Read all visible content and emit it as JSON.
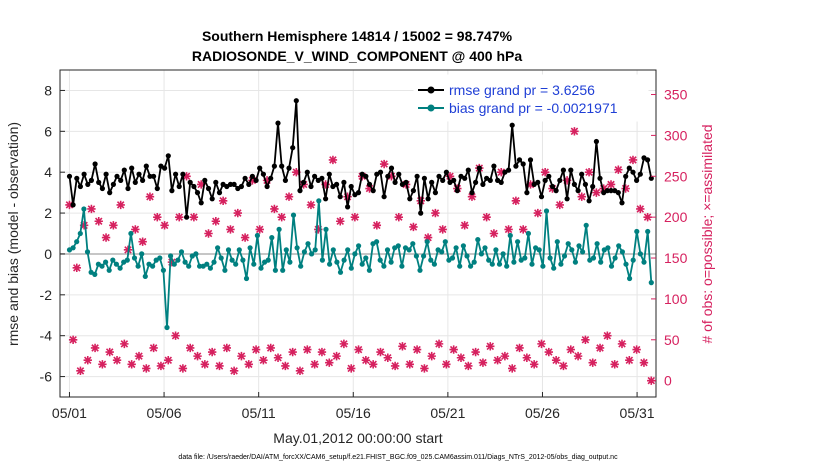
{
  "chart_data": {
    "type": "line",
    "title": "Southern Hemisphere 14814 / 15002 = 98.747%",
    "subtitle": "RADIOSONDE_V_WIND_COMPONENT @ 400 hPa",
    "xlabel": "May.01,2012 00:00:00 start",
    "ylabel": "rmse and bias (model - observation)",
    "y2label": "# of obs: o=possible; ×=assimilated",
    "footnote": "data file: /Users/raeder/DAI/ATM_forcXX/CAM6_setup/f.e21.FHIST_BGC.f09_025.CAM6assim.011/Diags_NTrS_2012-05/obs_diag_output.nc",
    "xlim": [
      0.5,
      32.0
    ],
    "ylim": [
      -7,
      9
    ],
    "y2lim": [
      -20,
      380
    ],
    "x_ticks": [
      1,
      6,
      11,
      16,
      21,
      26,
      31
    ],
    "x_tick_labels": [
      "05/01",
      "05/06",
      "05/11",
      "05/16",
      "05/21",
      "05/26",
      "05/31"
    ],
    "y_ticks": [
      -6,
      -4,
      -2,
      0,
      2,
      4,
      6,
      8
    ],
    "y2_ticks": [
      0,
      50,
      100,
      150,
      200,
      250,
      300,
      350
    ],
    "legend_position": "top-right",
    "colors": {
      "rmse": "#000000",
      "bias": "#008080",
      "obs": "#d6215f",
      "zero": "#b3b3b3",
      "axis": "#262626"
    },
    "series": [
      {
        "name": "rmse grand pr = 3.6256",
        "axis": "left",
        "values": [
          3.8,
          2.4,
          3.7,
          3.3,
          3.9,
          3.4,
          3.6,
          4.4,
          3.5,
          3.2,
          3.9,
          3.0,
          3.4,
          3.8,
          3.6,
          4.1,
          3.2,
          4.2,
          3.5,
          3.9,
          3.6,
          4.3,
          3.8,
          3.8,
          3.2,
          4.3,
          4.2,
          4.8,
          3.1,
          3.9,
          3.3,
          3.9,
          1.8,
          3.5,
          3.3,
          3.0,
          2.5,
          3.6,
          3.2,
          2.7,
          3.5,
          3.0,
          3.4,
          3.3,
          3.4,
          3.4,
          3.2,
          3.3,
          3.7,
          3.4,
          3.8,
          3.6,
          4.2,
          3.9,
          3.3,
          3.7,
          4.3,
          6.4,
          4.3,
          3.6,
          4.2,
          5.2,
          7.5,
          3.1,
          3.5,
          4.0,
          3.3,
          3.8,
          3.6,
          3.7,
          2.7,
          3.9,
          3.3,
          3.4,
          2.8,
          3.5,
          2.3,
          3.3,
          2.9,
          3.0,
          3.9,
          3.8,
          3.4,
          3.1,
          3.9,
          4.0,
          2.8,
          3.8,
          4.2,
          3.5,
          3.9,
          3.4,
          3.5,
          2.7,
          3.1,
          3.8,
          2.0,
          3.7,
          2.7,
          3.5,
          3.0,
          3.8,
          3.6,
          4.0,
          3.5,
          3.6,
          3.1,
          3.8,
          3.7,
          4.1,
          3.0,
          3.5,
          4.2,
          3.4,
          3.7,
          3.6,
          4.3,
          3.6,
          3.5,
          4.0,
          4.1,
          6.3,
          4.3,
          4.6,
          4.4,
          3.0,
          4.6,
          3.4,
          3.5,
          2.8,
          3.6,
          3.8,
          3.3,
          3.1,
          3.6,
          4.1,
          2.7,
          4.1,
          3.4,
          3.1,
          3.9,
          3.4,
          2.6,
          3.3,
          5.5,
          3.7,
          3.0,
          3.1,
          3.1,
          3.1,
          3.0,
          2.5,
          3.8,
          4.2,
          4.0,
          3.6,
          3.9,
          4.7,
          4.6,
          3.7
        ],
        "marker": "filled-circle"
      },
      {
        "name": "bias grand pr = -0.0021971",
        "axis": "left",
        "values": [
          0.2,
          0.3,
          0.6,
          1.0,
          2.2,
          0.1,
          -0.9,
          -1.0,
          -0.5,
          -0.6,
          -0.4,
          -0.8,
          -0.3,
          -0.5,
          -0.7,
          -0.4,
          -0.3,
          1.0,
          -0.2,
          -0.6,
          0.0,
          -1.1,
          -0.5,
          -0.6,
          -0.3,
          -0.2,
          -0.8,
          -3.6,
          -0.1,
          -0.5,
          -0.3,
          0.1,
          -0.4,
          -0.6,
          -0.1,
          0.0,
          -0.6,
          -0.6,
          -0.5,
          -0.7,
          -0.4,
          0.3,
          -0.2,
          -0.8,
          0.2,
          -0.3,
          -0.5,
          0.2,
          -0.3,
          -1.2,
          0.3,
          -0.5,
          0.9,
          -0.7,
          -0.4,
          -0.3,
          0.8,
          -0.8,
          1.2,
          -0.8,
          0.2,
          -0.4,
          1.9,
          0.3,
          -0.6,
          0.1,
          0.5,
          0.0,
          0.2,
          2.6,
          -0.3,
          1.2,
          -0.5,
          0.2,
          -0.4,
          -0.9,
          -0.3,
          0.2,
          -0.7,
          0.0,
          0.4,
          -0.5,
          -0.2,
          -0.8,
          0.5,
          0.6,
          -0.3,
          -0.6,
          0.2,
          -0.4,
          0.3,
          0.4,
          -0.6,
          0.3,
          0.2,
          0.5,
          -0.1,
          -0.8,
          -0.1,
          0.6,
          -0.3,
          -0.5,
          0.2,
          0.1,
          0.6,
          -0.3,
          -0.2,
          0.3,
          -0.6,
          0.4,
          -0.1,
          -0.6,
          -0.4,
          0.7,
          0.0,
          0.3,
          -0.3,
          -0.5,
          0.2,
          -0.5,
          0.0,
          -0.6,
          0.9,
          -0.4,
          0.6,
          -0.3,
          -0.2,
          1.0,
          -0.5,
          0.3,
          0.2,
          -0.6,
          2.1,
          -0.2,
          -0.7,
          0.6,
          -0.5,
          -0.1,
          0.5,
          0.2,
          -0.4,
          0.4,
          0.1,
          1.4,
          -0.3,
          -0.2,
          0.5,
          -0.4,
          0.2,
          0.3,
          -0.6,
          -0.2,
          0.4,
          0.1,
          -0.5,
          -1.2,
          -0.3,
          1.1,
          0.0,
          -0.4,
          1.1,
          -1.4
        ],
        "marker": "filled-circle"
      },
      {
        "name": "obs possible / assimilated",
        "axis": "right",
        "values": [
          215,
          50,
          138,
          12,
          190,
          25,
          210,
          40,
          195,
          20,
          175,
          35,
          190,
          25,
          215,
          45,
          160,
          20,
          185,
          30,
          170,
          15,
          225,
          40,
          200,
          18,
          190,
          25,
          145,
          55,
          200,
          15,
          250,
          40,
          200,
          30,
          240,
          20,
          180,
          35,
          195,
          18,
          220,
          40,
          185,
          12,
          205,
          30,
          175,
          20,
          245,
          38,
          185,
          25,
          245,
          40,
          210,
          28,
          200,
          18,
          225,
          35,
          255,
          12,
          240,
          38,
          215,
          20,
          185,
          35,
          240,
          22,
          270,
          30,
          195,
          45,
          225,
          15,
          200,
          38,
          250,
          25,
          235,
          20,
          190,
          35,
          265,
          28,
          250,
          18,
          200,
          42,
          240,
          20,
          188,
          38,
          220,
          15,
          175,
          30,
          205,
          45,
          185,
          20,
          250,
          38,
          235,
          28,
          190,
          18,
          225,
          35,
          260,
          22,
          200,
          42,
          180,
          25,
          255,
          30,
          185,
          15,
          220,
          40,
          185,
          28,
          240,
          20,
          205,
          45,
          255,
          35,
          235,
          25,
          215,
          18,
          245,
          38,
          305,
          30,
          225,
          50,
          255,
          22,
          230,
          40,
          235,
          55,
          240,
          20,
          258,
          45,
          235,
          25,
          270,
          38,
          210,
          22,
          200,
          0
        ],
        "marker": "cross"
      }
    ]
  }
}
